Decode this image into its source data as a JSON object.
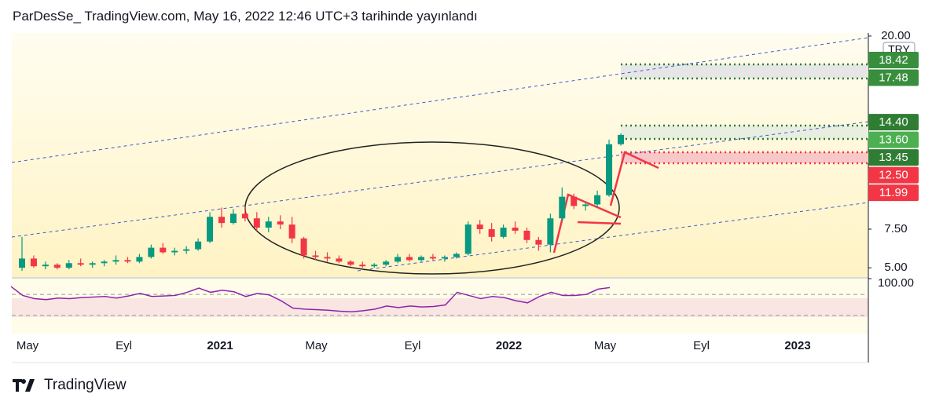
{
  "header": {
    "title": "ParDesSe_ TradingView.com, May 16, 2022 12:46 UTC+3 tarihinde yayınlandı"
  },
  "chart_data": {
    "type": "candlestick",
    "currency": "TRY",
    "up_color": "#089981",
    "down_color": "#f23645",
    "ylim": [
      4.4,
      20.2
    ],
    "yticks": [
      {
        "value": 20,
        "label": "20.00"
      },
      {
        "value": 7.5,
        "label": "7.50"
      },
      {
        "value": 5,
        "label": "5.00"
      }
    ],
    "price_labels": [
      {
        "value": 18.42,
        "label": "18.42",
        "color": "#388e3c"
      },
      {
        "value": 17.48,
        "label": "17.48",
        "color": "#388e3c"
      },
      {
        "value": 14.4,
        "label": "14.40",
        "color": "#2e7d32"
      },
      {
        "value": 13.6,
        "label": "13.60",
        "color": "#4caf50"
      },
      {
        "value": 13.45,
        "label": "13.45",
        "color": "#2e7d32"
      },
      {
        "value": 12.5,
        "label": "12.50",
        "color": "#f23645"
      },
      {
        "value": 11.99,
        "label": "11.99",
        "color": "#f23645"
      }
    ],
    "xticks": [
      "May",
      "Eyl",
      "2021",
      "May",
      "Eyl",
      "2022",
      "May",
      "Eyl",
      "2023"
    ],
    "candles": {
      "open": [
        5.0,
        5.6,
        5.1,
        5.2,
        5.0,
        5.3,
        5.2,
        5.3,
        5.4,
        5.5,
        5.4,
        5.7,
        6.3,
        6.0,
        6.1,
        6.2,
        6.7,
        8.3,
        7.9,
        8.5,
        8.2,
        7.6,
        8.0,
        7.8,
        6.9,
        5.8,
        5.7,
        5.6,
        5.4,
        5.2,
        5.1,
        5.2,
        5.4,
        5.7,
        5.5,
        5.7,
        5.6,
        5.7,
        5.9,
        7.8,
        7.5,
        7.0,
        7.6,
        7.4,
        6.8,
        6.5,
        8.2,
        9.6,
        9.0,
        9.1,
        9.7,
        13.0
      ],
      "high": [
        7.0,
        5.8,
        5.4,
        5.3,
        5.5,
        5.6,
        5.4,
        5.5,
        5.8,
        5.7,
        5.9,
        6.5,
        6.6,
        6.3,
        6.4,
        6.9,
        8.6,
        8.9,
        8.8,
        9.0,
        8.6,
        8.3,
        8.4,
        8.3,
        7.0,
        6.1,
        6.0,
        5.8,
        5.5,
        5.4,
        5.3,
        5.5,
        5.9,
        5.9,
        5.8,
        5.9,
        5.8,
        6.0,
        8.0,
        8.1,
        7.9,
        7.8,
        8.0,
        7.6,
        7.0,
        8.5,
        10.2,
        9.8,
        9.2,
        10.0,
        13.3,
        13.7
      ],
      "low": [
        4.8,
        5.0,
        4.9,
        4.9,
        4.9,
        5.1,
        5.0,
        5.1,
        5.2,
        5.3,
        5.3,
        5.6,
        5.9,
        5.8,
        5.9,
        6.1,
        6.6,
        7.6,
        7.8,
        8.0,
        7.4,
        7.3,
        7.5,
        6.6,
        5.6,
        5.5,
        5.4,
        5.3,
        5.1,
        5.0,
        5.0,
        5.1,
        5.3,
        5.4,
        5.4,
        5.5,
        5.4,
        5.6,
        5.8,
        7.2,
        6.7,
        6.9,
        7.2,
        6.6,
        6.1,
        6.0,
        8.0,
        8.8,
        8.7,
        8.9,
        9.6,
        12.9
      ],
      "close": [
        5.6,
        5.1,
        5.2,
        5.0,
        5.3,
        5.2,
        5.3,
        5.4,
        5.5,
        5.4,
        5.7,
        6.3,
        6.0,
        6.1,
        6.2,
        6.7,
        8.3,
        7.9,
        8.5,
        8.2,
        7.6,
        8.0,
        7.8,
        6.9,
        5.8,
        5.7,
        5.6,
        5.4,
        5.2,
        5.1,
        5.2,
        5.4,
        5.7,
        5.5,
        5.7,
        5.6,
        5.7,
        5.9,
        7.8,
        7.5,
        7.0,
        7.6,
        7.4,
        6.8,
        6.5,
        8.2,
        9.6,
        9.0,
        9.1,
        9.7,
        13.0,
        13.6
      ]
    },
    "rsi": {
      "color": "#8e24aa",
      "ylim": [
        0,
        100
      ],
      "yticks": [
        {
          "value": 100,
          "label": "100.00"
        }
      ],
      "bands": [
        70,
        30
      ],
      "values": [
        85,
        68,
        62,
        60,
        63,
        62,
        64,
        65,
        66,
        63,
        67,
        72,
        66,
        67,
        68,
        74,
        82,
        74,
        78,
        75,
        66,
        72,
        69,
        58,
        44,
        42,
        41,
        40,
        38,
        37,
        39,
        42,
        48,
        45,
        48,
        46,
        47,
        50,
        74,
        68,
        62,
        66,
        64,
        58,
        54,
        66,
        74,
        68,
        68,
        70,
        80,
        83
      ]
    }
  },
  "footer": {
    "brand": "TradingView"
  }
}
